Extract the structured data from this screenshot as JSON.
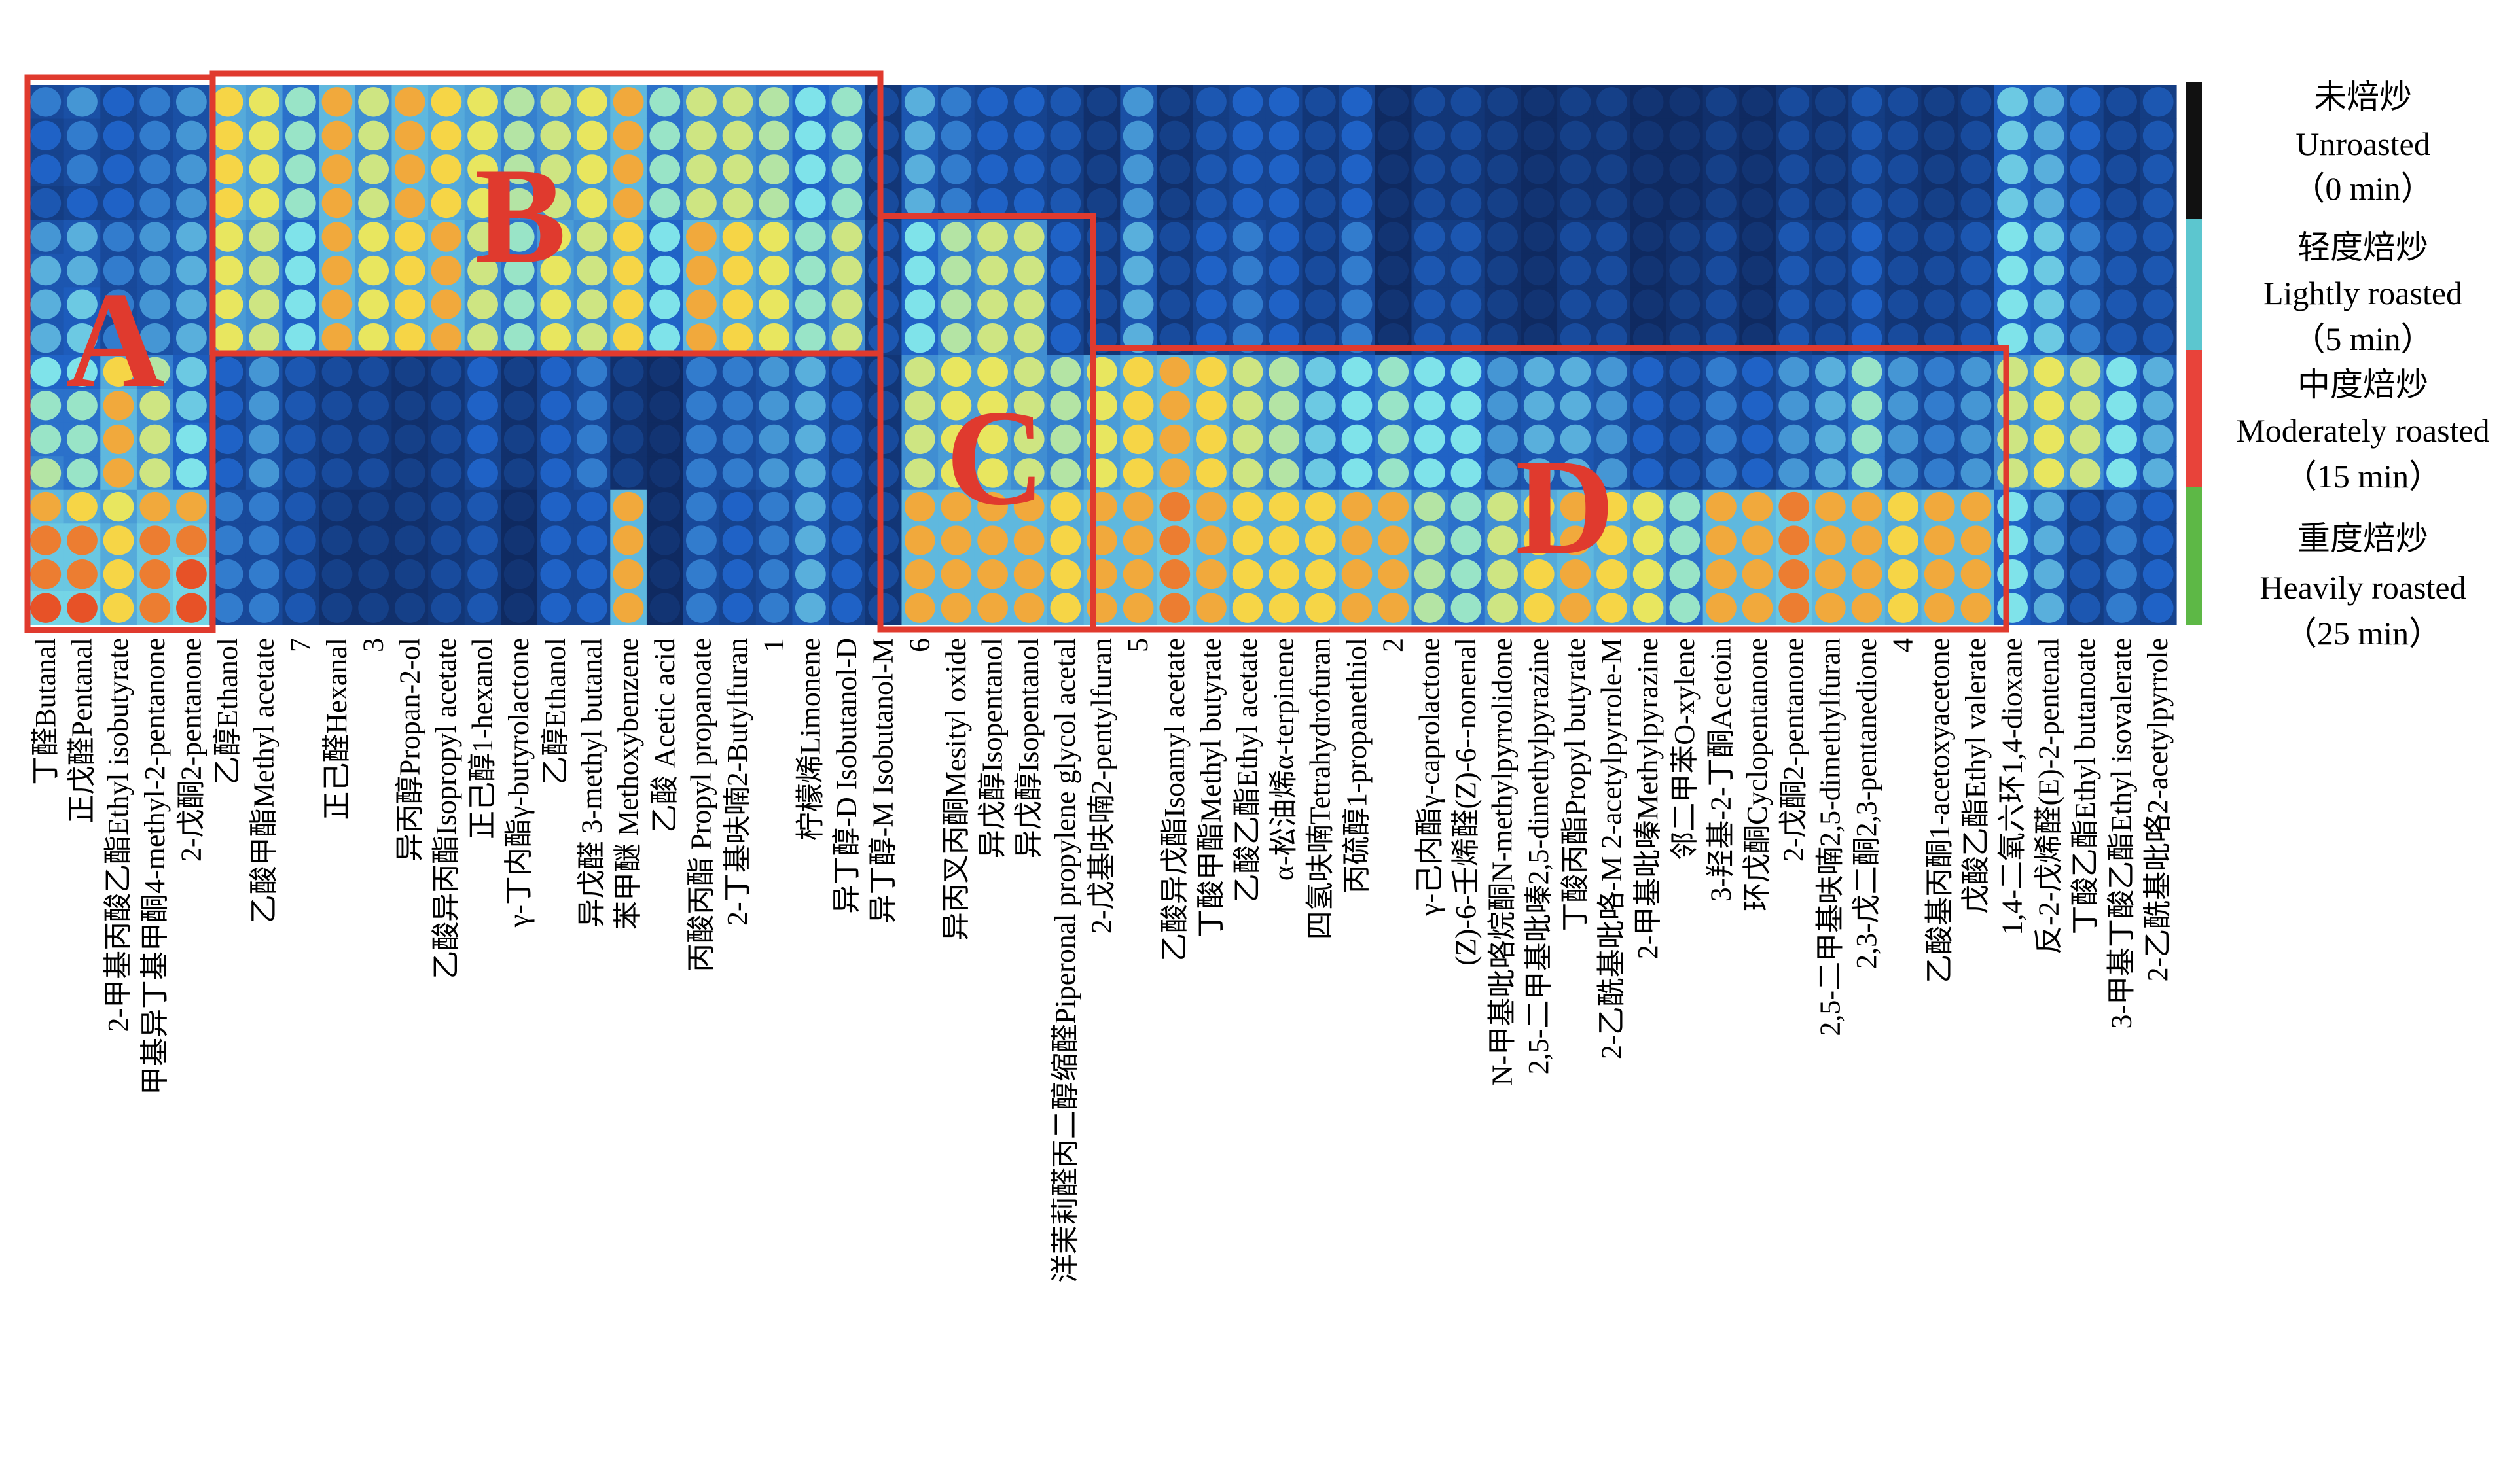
{
  "chart_data": {
    "type": "heatmap",
    "title": "",
    "xlabel": "",
    "ylabel": "",
    "groups": [
      {
        "zh": "未焙炒",
        "en": "Unroasted",
        "time": "（0 min）",
        "color": "#111111"
      },
      {
        "zh": "轻度焙炒",
        "en": "Lightly roasted",
        "time": "（5 min）",
        "color": "#5cc6cf"
      },
      {
        "zh": "中度焙炒",
        "en": "Moderately roasted",
        "time": "（15 min）",
        "color": "#e8433a"
      },
      {
        "zh": "重度焙炒",
        "en": "Heavily roasted",
        "time": "（25 min）",
        "color": "#5db846"
      }
    ],
    "regions": [
      {
        "label": "A"
      },
      {
        "label": "B"
      },
      {
        "label": "C"
      },
      {
        "label": "D"
      }
    ],
    "columns": [
      "丁醛Butanal",
      "正戊醛Pentanal",
      "2-甲基丙酸乙酯Ethyl isobutyrate",
      "甲基异丁基甲酮4-methyl-2-pentanone",
      "2-戊酮2-pentanone",
      "乙醇Ethanol",
      "乙酸甲酯Methyl acetate",
      "7",
      "正己醛Hexanal",
      "3",
      "异丙醇Propan-2-ol",
      "乙酸异丙酯Isopropyl acetate",
      "正己醇1-hexanol",
      "γ-丁内酯γ-butyrolactone",
      "乙醇Ethanol",
      "异戊醛 3-methyl butanal",
      "苯甲醚 Methoxybenzene",
      "乙酸 Acetic acid",
      "丙酸丙酯 Propyl propanoate",
      "2-丁基呋喃2-Butylfuran",
      "1",
      "柠檬烯Limonene",
      "异丁醇-D Isobutanol-D",
      "异丁醇-M Isobutanol-M",
      "6",
      "异丙叉丙酮Mesityl oxide",
      "异戊醇Isopentanol",
      "异戊醇Isopentanol",
      "洋茉莉醛丙二醇缩醛Piperonal propylene glycol acetal",
      "2-戊基呋喃2-pentylfuran",
      "5",
      "乙酸异戊酯Isoamyl acetate",
      "丁酸甲酯Methyl butyrate",
      "乙酸乙酯Ethyl acetate",
      "α-松油烯α-terpinene",
      "四氢呋喃Tetrahydrofuran",
      "丙硫醇1-propanethiol",
      "2",
      "γ-己内酯γ-caprolactone",
      "(Z)-6-壬烯醛(Z)-6--nonenal",
      "N-甲基吡咯烷酮N-methylpyrrolidone",
      "2,5-二甲基吡嗪2,5-dimethylpyrazine",
      "丁酸丙酯Propyl butyrate",
      "2-乙酰基吡咯-M 2-acetylpyrrole-M",
      "2-甲基吡嗪Methylpyrazine",
      "邻二甲苯O-xylene",
      "3-羟基-2-丁酮Acetoin",
      "环戊酮Cyclopentanone",
      "2-戊酮2-pentanone",
      "2,5-二甲基呋喃2,5-dimethylfuran",
      "2,3-戊二酮2,3-pentanedione",
      "4",
      "乙酸基丙酮1-acetoxyacetone",
      "戊酸乙酯Ethyl valerate",
      "1,4-二氧六环1,4-dioxane",
      "反-2-戊烯醛(E)-2-pentenal",
      "丁酸乙酯Ethyl butanoate",
      "3-甲基丁酸乙酯Ethyl isovalerate",
      "2-乙酰基吡咯2-acetylpyrrole"
    ],
    "profiles": [
      [
        0.35,
        0.3,
        0.3,
        0.25,
        0.4,
        0.45,
        0.45,
        0.45,
        0.55,
        0.6,
        0.6,
        0.65,
        0.85,
        0.9,
        0.9,
        0.95
      ],
      [
        0.4,
        0.35,
        0.35,
        0.3,
        0.45,
        0.45,
        0.5,
        0.5,
        0.55,
        0.6,
        0.6,
        0.6,
        0.8,
        0.9,
        0.9,
        0.95
      ],
      [
        0.3,
        0.3,
        0.3,
        0.3,
        0.35,
        0.35,
        0.35,
        0.35,
        0.8,
        0.85,
        0.85,
        0.85,
        0.75,
        0.8,
        0.8,
        0.8
      ],
      [
        0.35,
        0.35,
        0.35,
        0.35,
        0.4,
        0.4,
        0.4,
        0.4,
        0.65,
        0.7,
        0.7,
        0.7,
        0.85,
        0.9,
        0.9,
        0.9
      ],
      [
        0.4,
        0.4,
        0.4,
        0.4,
        0.45,
        0.45,
        0.45,
        0.45,
        0.5,
        0.5,
        0.55,
        0.55,
        0.85,
        0.9,
        0.95,
        0.95
      ],
      [
        0.8,
        0.8,
        0.8,
        0.8,
        0.75,
        0.75,
        0.75,
        0.75,
        0.3,
        0.3,
        0.3,
        0.3,
        0.35,
        0.35,
        0.35,
        0.35
      ],
      [
        0.75,
        0.75,
        0.75,
        0.75,
        0.7,
        0.7,
        0.7,
        0.7,
        0.4,
        0.4,
        0.4,
        0.4,
        0.35,
        0.35,
        0.35,
        0.35
      ],
      [
        0.6,
        0.6,
        0.6,
        0.6,
        0.55,
        0.55,
        0.55,
        0.55,
        0.25,
        0.25,
        0.25,
        0.25,
        0.25,
        0.25,
        0.25,
        0.25
      ],
      [
        0.85,
        0.85,
        0.85,
        0.85,
        0.85,
        0.85,
        0.85,
        0.85,
        0.2,
        0.2,
        0.2,
        0.2,
        0.15,
        0.15,
        0.15,
        0.15
      ],
      [
        0.7,
        0.7,
        0.7,
        0.7,
        0.75,
        0.75,
        0.75,
        0.75,
        0.2,
        0.2,
        0.2,
        0.2,
        0.15,
        0.15,
        0.15,
        0.15
      ],
      [
        0.85,
        0.85,
        0.85,
        0.85,
        0.8,
        0.8,
        0.8,
        0.8,
        0.15,
        0.15,
        0.15,
        0.15,
        0.15,
        0.15,
        0.15,
        0.15
      ],
      [
        0.8,
        0.8,
        0.8,
        0.8,
        0.85,
        0.85,
        0.85,
        0.85,
        0.2,
        0.2,
        0.2,
        0.2,
        0.2,
        0.2,
        0.2,
        0.2
      ],
      [
        0.75,
        0.75,
        0.75,
        0.75,
        0.7,
        0.7,
        0.7,
        0.7,
        0.3,
        0.3,
        0.3,
        0.3,
        0.25,
        0.25,
        0.25,
        0.25
      ],
      [
        0.65,
        0.65,
        0.65,
        0.65,
        0.6,
        0.6,
        0.6,
        0.6,
        0.15,
        0.15,
        0.15,
        0.15,
        0.1,
        0.1,
        0.1,
        0.1
      ],
      [
        0.7,
        0.7,
        0.7,
        0.7,
        0.75,
        0.75,
        0.75,
        0.75,
        0.3,
        0.3,
        0.3,
        0.3,
        0.3,
        0.3,
        0.3,
        0.3
      ],
      [
        0.75,
        0.75,
        0.75,
        0.75,
        0.7,
        0.7,
        0.7,
        0.7,
        0.35,
        0.35,
        0.35,
        0.35,
        0.3,
        0.3,
        0.3,
        0.3
      ],
      [
        0.85,
        0.85,
        0.85,
        0.85,
        0.8,
        0.8,
        0.8,
        0.8,
        0.15,
        0.15,
        0.15,
        0.15,
        0.85,
        0.85,
        0.85,
        0.85
      ],
      [
        0.6,
        0.6,
        0.6,
        0.6,
        0.55,
        0.55,
        0.55,
        0.55,
        0.1,
        0.1,
        0.1,
        0.1,
        0.1,
        0.1,
        0.1,
        0.1
      ],
      [
        0.7,
        0.7,
        0.7,
        0.7,
        0.85,
        0.85,
        0.85,
        0.85,
        0.35,
        0.35,
        0.35,
        0.35,
        0.35,
        0.35,
        0.35,
        0.35
      ],
      [
        0.7,
        0.7,
        0.7,
        0.7,
        0.8,
        0.8,
        0.8,
        0.8,
        0.35,
        0.35,
        0.35,
        0.35,
        0.3,
        0.3,
        0.3,
        0.3
      ],
      [
        0.65,
        0.65,
        0.65,
        0.65,
        0.75,
        0.75,
        0.75,
        0.75,
        0.4,
        0.4,
        0.4,
        0.4,
        0.35,
        0.35,
        0.35,
        0.35
      ],
      [
        0.55,
        0.55,
        0.55,
        0.55,
        0.6,
        0.6,
        0.6,
        0.6,
        0.45,
        0.45,
        0.45,
        0.45,
        0.45,
        0.45,
        0.45,
        0.45
      ],
      [
        0.6,
        0.6,
        0.6,
        0.6,
        0.7,
        0.7,
        0.7,
        0.7,
        0.3,
        0.3,
        0.3,
        0.3,
        0.3,
        0.3,
        0.3,
        0.3
      ],
      [
        0.2,
        0.2,
        0.2,
        0.2,
        0.25,
        0.25,
        0.25,
        0.25,
        0.2,
        0.2,
        0.2,
        0.2,
        0.2,
        0.2,
        0.2,
        0.2
      ],
      [
        0.45,
        0.45,
        0.45,
        0.45,
        0.55,
        0.55,
        0.55,
        0.55,
        0.7,
        0.7,
        0.7,
        0.7,
        0.85,
        0.85,
        0.85,
        0.85
      ],
      [
        0.35,
        0.35,
        0.35,
        0.35,
        0.65,
        0.65,
        0.65,
        0.65,
        0.75,
        0.75,
        0.75,
        0.75,
        0.85,
        0.85,
        0.85,
        0.85
      ],
      [
        0.3,
        0.3,
        0.3,
        0.3,
        0.7,
        0.7,
        0.7,
        0.7,
        0.75,
        0.75,
        0.75,
        0.75,
        0.85,
        0.85,
        0.85,
        0.85
      ],
      [
        0.3,
        0.3,
        0.3,
        0.3,
        0.7,
        0.7,
        0.7,
        0.7,
        0.7,
        0.7,
        0.7,
        0.7,
        0.85,
        0.85,
        0.85,
        0.85
      ],
      [
        0.25,
        0.25,
        0.25,
        0.25,
        0.3,
        0.3,
        0.3,
        0.3,
        0.65,
        0.65,
        0.65,
        0.65,
        0.8,
        0.8,
        0.8,
        0.8
      ],
      [
        0.15,
        0.15,
        0.15,
        0.15,
        0.2,
        0.2,
        0.2,
        0.2,
        0.75,
        0.75,
        0.75,
        0.75,
        0.85,
        0.85,
        0.85,
        0.85
      ],
      [
        0.4,
        0.4,
        0.4,
        0.4,
        0.45,
        0.45,
        0.45,
        0.45,
        0.8,
        0.8,
        0.8,
        0.8,
        0.85,
        0.85,
        0.85,
        0.85
      ],
      [
        0.15,
        0.15,
        0.15,
        0.15,
        0.2,
        0.2,
        0.2,
        0.2,
        0.85,
        0.85,
        0.85,
        0.85,
        0.9,
        0.9,
        0.9,
        0.9
      ],
      [
        0.25,
        0.25,
        0.25,
        0.25,
        0.3,
        0.3,
        0.3,
        0.3,
        0.8,
        0.8,
        0.8,
        0.8,
        0.85,
        0.85,
        0.85,
        0.85
      ],
      [
        0.3,
        0.3,
        0.3,
        0.3,
        0.35,
        0.35,
        0.35,
        0.35,
        0.7,
        0.7,
        0.7,
        0.7,
        0.8,
        0.8,
        0.8,
        0.8
      ],
      [
        0.3,
        0.3,
        0.3,
        0.3,
        0.3,
        0.3,
        0.3,
        0.3,
        0.65,
        0.65,
        0.65,
        0.65,
        0.8,
        0.8,
        0.8,
        0.8
      ],
      [
        0.2,
        0.2,
        0.2,
        0.2,
        0.2,
        0.2,
        0.2,
        0.2,
        0.5,
        0.5,
        0.5,
        0.5,
        0.8,
        0.8,
        0.8,
        0.8
      ],
      [
        0.3,
        0.3,
        0.3,
        0.3,
        0.35,
        0.35,
        0.35,
        0.35,
        0.55,
        0.55,
        0.55,
        0.55,
        0.85,
        0.85,
        0.85,
        0.85
      ],
      [
        0.1,
        0.1,
        0.1,
        0.1,
        0.1,
        0.1,
        0.1,
        0.1,
        0.6,
        0.6,
        0.6,
        0.6,
        0.85,
        0.85,
        0.85,
        0.85
      ],
      [
        0.2,
        0.2,
        0.2,
        0.2,
        0.25,
        0.25,
        0.25,
        0.25,
        0.55,
        0.55,
        0.55,
        0.55,
        0.65,
        0.65,
        0.65,
        0.65
      ],
      [
        0.2,
        0.2,
        0.2,
        0.2,
        0.25,
        0.25,
        0.25,
        0.25,
        0.55,
        0.55,
        0.55,
        0.55,
        0.6,
        0.6,
        0.6,
        0.6
      ],
      [
        0.15,
        0.15,
        0.15,
        0.15,
        0.15,
        0.15,
        0.15,
        0.15,
        0.4,
        0.4,
        0.4,
        0.4,
        0.7,
        0.7,
        0.7,
        0.7
      ],
      [
        0.1,
        0.1,
        0.1,
        0.1,
        0.1,
        0.1,
        0.1,
        0.1,
        0.45,
        0.45,
        0.45,
        0.45,
        0.8,
        0.8,
        0.8,
        0.8
      ],
      [
        0.15,
        0.15,
        0.15,
        0.15,
        0.2,
        0.2,
        0.2,
        0.2,
        0.45,
        0.45,
        0.45,
        0.45,
        0.85,
        0.85,
        0.85,
        0.85
      ],
      [
        0.15,
        0.15,
        0.15,
        0.15,
        0.2,
        0.2,
        0.2,
        0.2,
        0.4,
        0.4,
        0.4,
        0.4,
        0.8,
        0.8,
        0.8,
        0.8
      ],
      [
        0.1,
        0.1,
        0.1,
        0.1,
        0.1,
        0.1,
        0.1,
        0.1,
        0.3,
        0.3,
        0.3,
        0.3,
        0.75,
        0.75,
        0.75,
        0.75
      ],
      [
        0.1,
        0.1,
        0.1,
        0.1,
        0.15,
        0.15,
        0.15,
        0.15,
        0.25,
        0.25,
        0.25,
        0.25,
        0.6,
        0.6,
        0.6,
        0.6
      ],
      [
        0.15,
        0.15,
        0.15,
        0.15,
        0.2,
        0.2,
        0.2,
        0.2,
        0.35,
        0.35,
        0.35,
        0.35,
        0.85,
        0.85,
        0.85,
        0.85
      ],
      [
        0.1,
        0.1,
        0.1,
        0.1,
        0.1,
        0.1,
        0.1,
        0.1,
        0.3,
        0.3,
        0.3,
        0.3,
        0.85,
        0.85,
        0.85,
        0.85
      ],
      [
        0.2,
        0.2,
        0.2,
        0.2,
        0.25,
        0.25,
        0.25,
        0.25,
        0.4,
        0.4,
        0.4,
        0.4,
        0.9,
        0.9,
        0.9,
        0.9
      ],
      [
        0.15,
        0.15,
        0.15,
        0.15,
        0.2,
        0.2,
        0.2,
        0.2,
        0.45,
        0.45,
        0.45,
        0.45,
        0.85,
        0.85,
        0.85,
        0.85
      ],
      [
        0.25,
        0.25,
        0.25,
        0.25,
        0.3,
        0.3,
        0.3,
        0.3,
        0.6,
        0.6,
        0.6,
        0.6,
        0.85,
        0.85,
        0.85,
        0.85
      ],
      [
        0.2,
        0.2,
        0.2,
        0.2,
        0.2,
        0.2,
        0.2,
        0.2,
        0.4,
        0.4,
        0.4,
        0.4,
        0.8,
        0.8,
        0.8,
        0.8
      ],
      [
        0.15,
        0.15,
        0.15,
        0.15,
        0.2,
        0.2,
        0.2,
        0.2,
        0.35,
        0.35,
        0.35,
        0.35,
        0.85,
        0.85,
        0.85,
        0.85
      ],
      [
        0.2,
        0.2,
        0.2,
        0.2,
        0.25,
        0.25,
        0.25,
        0.25,
        0.4,
        0.4,
        0.4,
        0.4,
        0.85,
        0.85,
        0.85,
        0.85
      ],
      [
        0.5,
        0.5,
        0.5,
        0.5,
        0.55,
        0.55,
        0.55,
        0.55,
        0.7,
        0.7,
        0.7,
        0.7,
        0.55,
        0.55,
        0.55,
        0.55
      ],
      [
        0.45,
        0.45,
        0.45,
        0.45,
        0.5,
        0.5,
        0.5,
        0.5,
        0.75,
        0.75,
        0.75,
        0.75,
        0.45,
        0.45,
        0.45,
        0.45
      ],
      [
        0.3,
        0.3,
        0.3,
        0.3,
        0.35,
        0.35,
        0.35,
        0.35,
        0.7,
        0.7,
        0.7,
        0.7,
        0.25,
        0.25,
        0.25,
        0.25
      ],
      [
        0.2,
        0.2,
        0.2,
        0.2,
        0.25,
        0.25,
        0.25,
        0.25,
        0.55,
        0.55,
        0.55,
        0.55,
        0.35,
        0.35,
        0.35,
        0.35
      ],
      [
        0.25,
        0.25,
        0.25,
        0.25,
        0.25,
        0.25,
        0.25,
        0.25,
        0.45,
        0.45,
        0.45,
        0.45,
        0.3,
        0.3,
        0.3,
        0.3
      ]
    ],
    "colors": {
      "low": "#0b1d4a",
      "mid_low": "#1f62c6",
      "mid": "#7fe3ea",
      "mid_high": "#f8e64a",
      "high": "#e2261d",
      "region_box": "#e03a2e"
    }
  }
}
